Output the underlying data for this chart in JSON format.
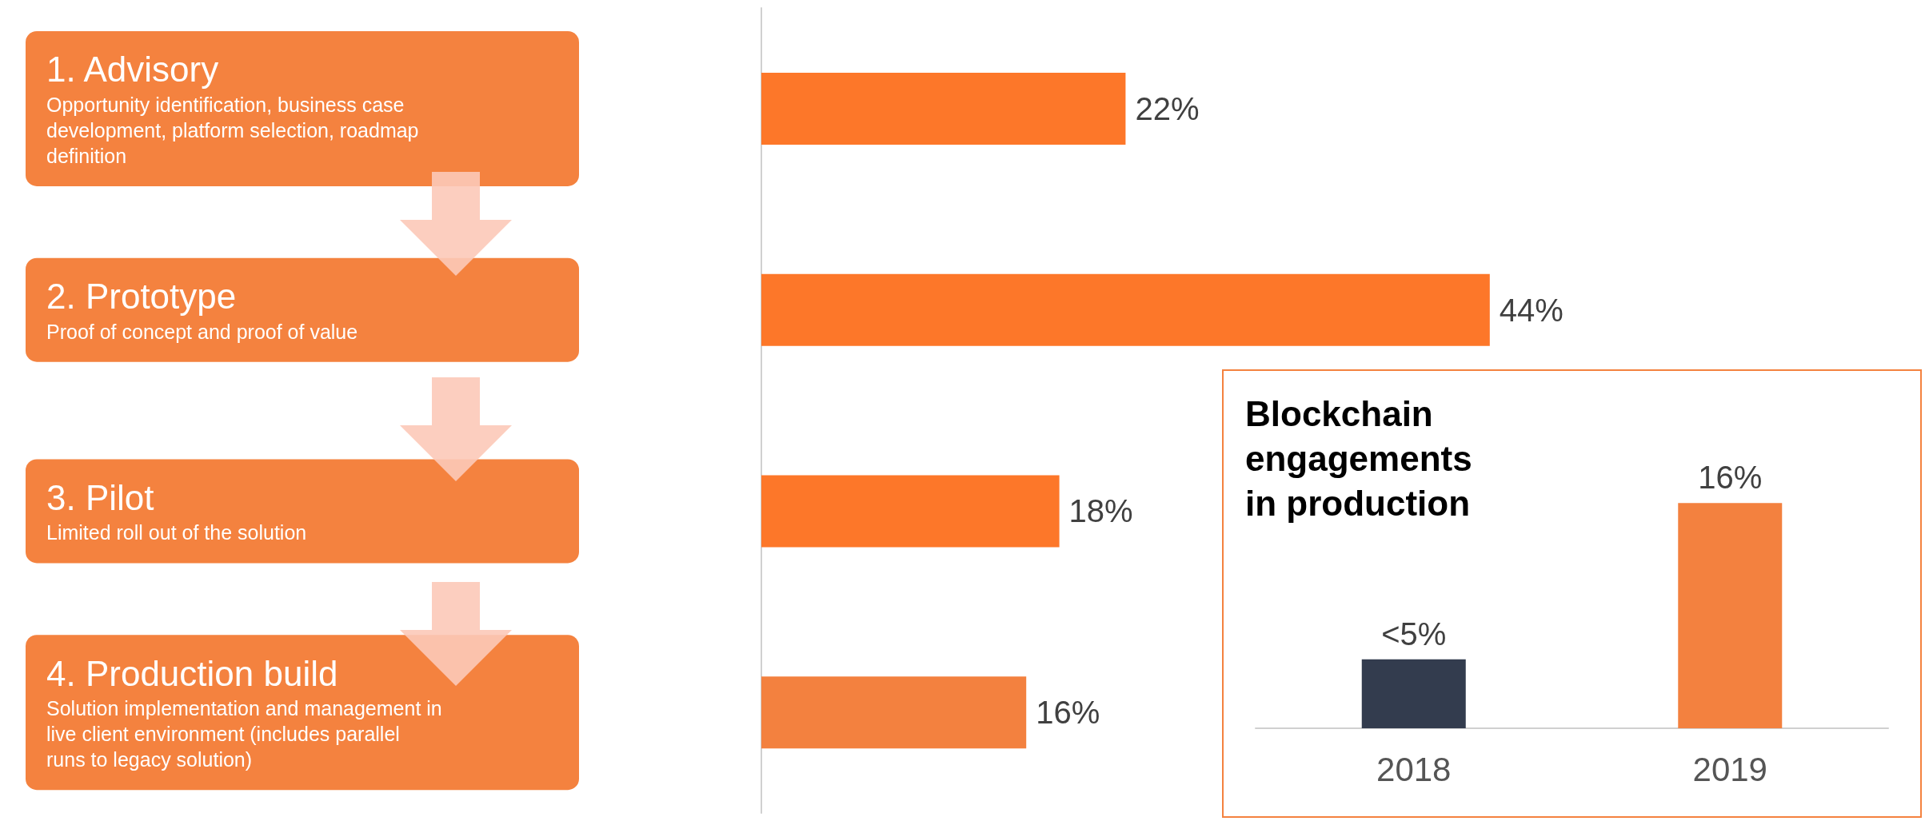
{
  "chart_data": [
    {
      "type": "bar",
      "orientation": "horizontal",
      "categories": [
        "1. Advisory",
        "2. Prototype",
        "3. Pilot",
        "4. Production build"
      ],
      "values": [
        22,
        44,
        18,
        16
      ],
      "value_labels": [
        "22%",
        "44%",
        "18%",
        "16%"
      ],
      "colors": [
        "#fd7729",
        "#fd7729",
        "#fd7729",
        "#f3813f"
      ],
      "annotations": [
        "Opportunity identification, business case development, platform selection, roadmap definition",
        "Proof of concept and proof of value",
        "Limited roll out of the solution",
        "Solution implementation and management in live client environment (includes parallel runs to legacy solution)"
      ]
    },
    {
      "type": "bar",
      "title": "Blockchain engagements in production",
      "categories": [
        "2018",
        "2019"
      ],
      "values": [
        4.9,
        16
      ],
      "value_labels": [
        "<5%",
        "16%"
      ],
      "colors": [
        "#333c4e",
        "#f3813f"
      ]
    }
  ]
}
